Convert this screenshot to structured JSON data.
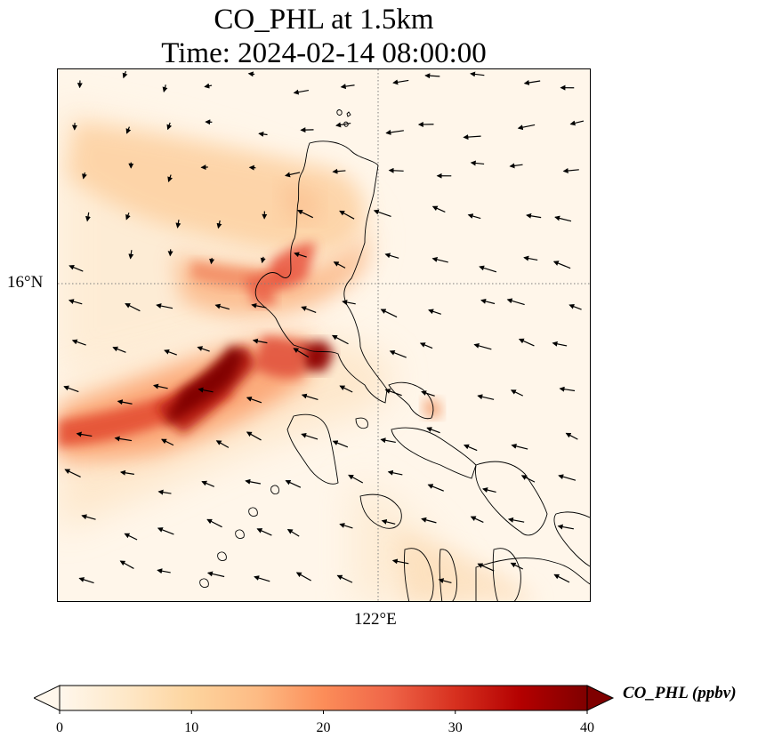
{
  "title": {
    "line1": "CO_PHL at 1.5km",
    "line2": "Time: 2024-02-14 08:00:00"
  },
  "map": {
    "lat_tick_label": "16°N",
    "lon_tick_label": "122°E",
    "colormap": "OrRd",
    "colors": {
      "background": "#fff6ea",
      "gridline": "#7f7f7f",
      "coastline": "#000000",
      "plume_low": "#fdd6a8",
      "plume_high": "#7f0000"
    }
  },
  "colorbar": {
    "label": "CO_PHL (ppbv)",
    "min": 0,
    "max": 40,
    "extend": "both",
    "ticks": [
      "0",
      "10",
      "20",
      "30",
      "40"
    ]
  }
}
